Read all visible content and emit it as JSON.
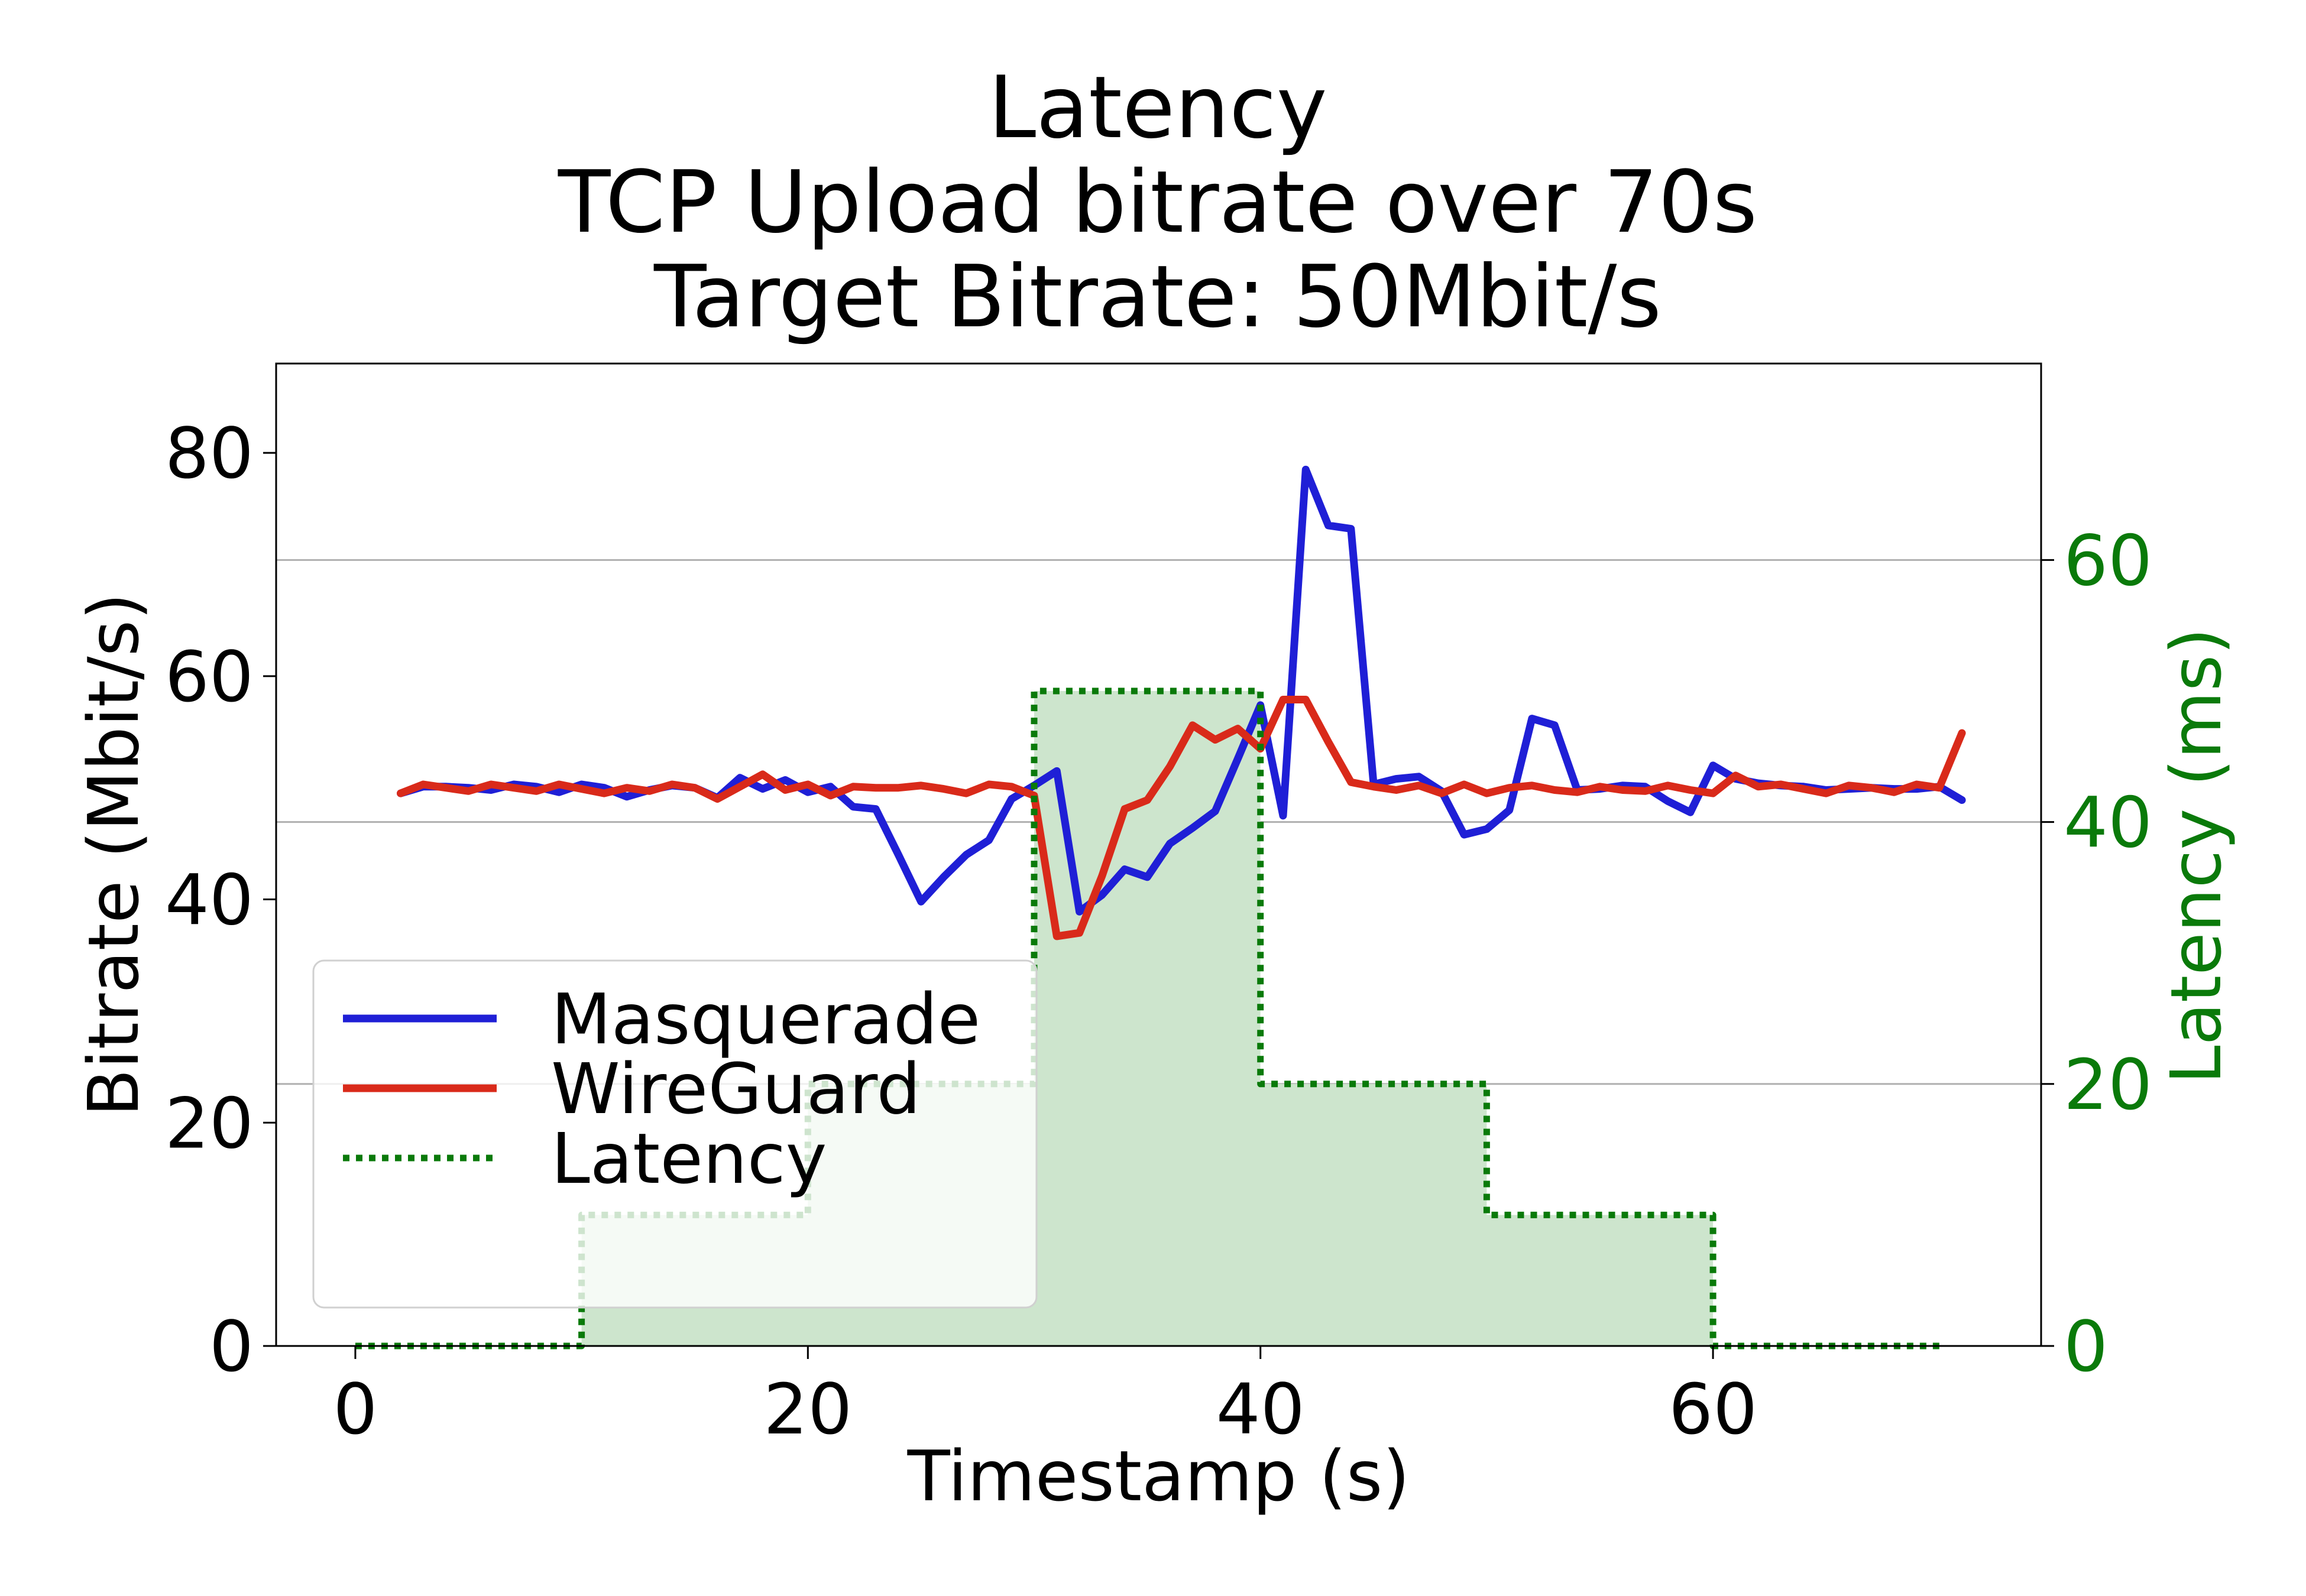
{
  "chart_data": {
    "type": "line",
    "title_lines": [
      "Latency",
      "TCP Upload bitrate over 70s",
      "Target Bitrate: 50Mbit/s"
    ],
    "xlabel": "Timestamp (s)",
    "ylabel": "Bitrate (Mbit/s)",
    "y2label": "Latency (ms)",
    "xlim": [
      -3.5,
      74.5
    ],
    "ylim": [
      0,
      88
    ],
    "y2lim": [
      0,
      75
    ],
    "xticks": [
      0,
      20,
      40,
      60
    ],
    "yticks": [
      0,
      20,
      40,
      60,
      80
    ],
    "y2ticks": [
      0,
      20,
      40,
      60
    ],
    "grid": "horizontal lines at right-axis ticks",
    "legend_position": "lower-left",
    "series": [
      {
        "name": "Masquerade",
        "color": "#1f1fd6",
        "axis": "left",
        "style": "solid",
        "x": [
          2,
          3,
          4,
          5,
          6,
          7,
          8,
          9,
          10,
          11,
          12,
          13,
          14,
          15,
          16,
          17,
          18,
          19,
          20,
          21,
          22,
          23,
          24,
          25,
          26,
          27,
          28,
          29,
          30,
          31,
          32,
          33,
          34,
          35,
          36,
          37,
          38,
          39,
          40,
          41,
          42,
          43,
          44,
          45,
          46,
          47,
          48,
          49,
          50,
          51,
          52,
          53,
          54,
          55,
          56,
          57,
          58,
          59,
          60,
          61,
          62,
          63,
          64,
          65,
          66,
          67,
          68,
          69,
          70,
          71
        ],
        "y": [
          49.5,
          50.1,
          50.1,
          50.0,
          49.8,
          50.3,
          50.1,
          49.6,
          50.3,
          50.0,
          49.2,
          49.8,
          50.2,
          50.0,
          49.1,
          50.9,
          49.9,
          50.7,
          49.6,
          50.1,
          48.3,
          48.1,
          44.0,
          39.8,
          42.0,
          44.0,
          45.3,
          49.0,
          50.2,
          51.5,
          38.9,
          40.4,
          42.7,
          42.0,
          45.0,
          46.4,
          47.9,
          52.6,
          57.4,
          47.5,
          78.5,
          73.5,
          73.2,
          50.3,
          50.8,
          51.0,
          49.7,
          45.8,
          46.3,
          48.0,
          56.2,
          55.6,
          49.8,
          49.9,
          50.2,
          50.1,
          48.8,
          47.8,
          52.0,
          50.8,
          50.4,
          50.2,
          50.1,
          49.8,
          49.9,
          50.0,
          49.9,
          49.9,
          50.1,
          48.9
        ]
      },
      {
        "name": "WireGuard",
        "color": "#d92a1a",
        "axis": "left",
        "style": "solid",
        "x": [
          2,
          3,
          4,
          5,
          6,
          7,
          8,
          9,
          10,
          11,
          12,
          13,
          14,
          15,
          16,
          17,
          18,
          19,
          20,
          21,
          22,
          23,
          24,
          25,
          26,
          27,
          28,
          29,
          30,
          31,
          32,
          33,
          34,
          35,
          36,
          37,
          38,
          39,
          40,
          41,
          42,
          43,
          44,
          45,
          46,
          47,
          48,
          49,
          50,
          51,
          52,
          53,
          54,
          55,
          56,
          57,
          58,
          59,
          60,
          61,
          62,
          63,
          64,
          65,
          66,
          67,
          68,
          69,
          70,
          71
        ],
        "y": [
          49.5,
          50.3,
          50.0,
          49.7,
          50.3,
          50.0,
          49.7,
          50.3,
          49.9,
          49.5,
          50.0,
          49.7,
          50.3,
          50.0,
          49.0,
          50.1,
          51.2,
          49.8,
          50.3,
          49.3,
          50.1,
          50.0,
          50.0,
          50.2,
          49.9,
          49.5,
          50.3,
          50.1,
          49.3,
          36.7,
          37.0,
          42.1,
          48.1,
          48.9,
          51.9,
          55.6,
          54.3,
          55.3,
          53.5,
          57.9,
          57.9,
          54.1,
          50.5,
          50.1,
          49.8,
          50.2,
          49.5,
          50.3,
          49.5,
          50.0,
          50.2,
          49.8,
          49.6,
          50.1,
          49.8,
          49.7,
          50.2,
          49.8,
          49.5,
          51.1,
          50.1,
          50.3,
          49.9,
          49.5,
          50.2,
          50.0,
          49.6,
          50.3,
          50.0,
          54.9
        ]
      },
      {
        "name": "Latency",
        "color": "#0a7a0a",
        "fill": "#cde5cd",
        "axis": "right",
        "style": "dotted-step",
        "x": [
          0,
          10,
          10,
          20,
          20,
          30,
          30,
          40,
          40,
          50,
          50,
          60,
          60,
          70
        ],
        "y": [
          0,
          0,
          10,
          10,
          20,
          20,
          50,
          50,
          20,
          20,
          10,
          10,
          0,
          0
        ]
      }
    ]
  }
}
